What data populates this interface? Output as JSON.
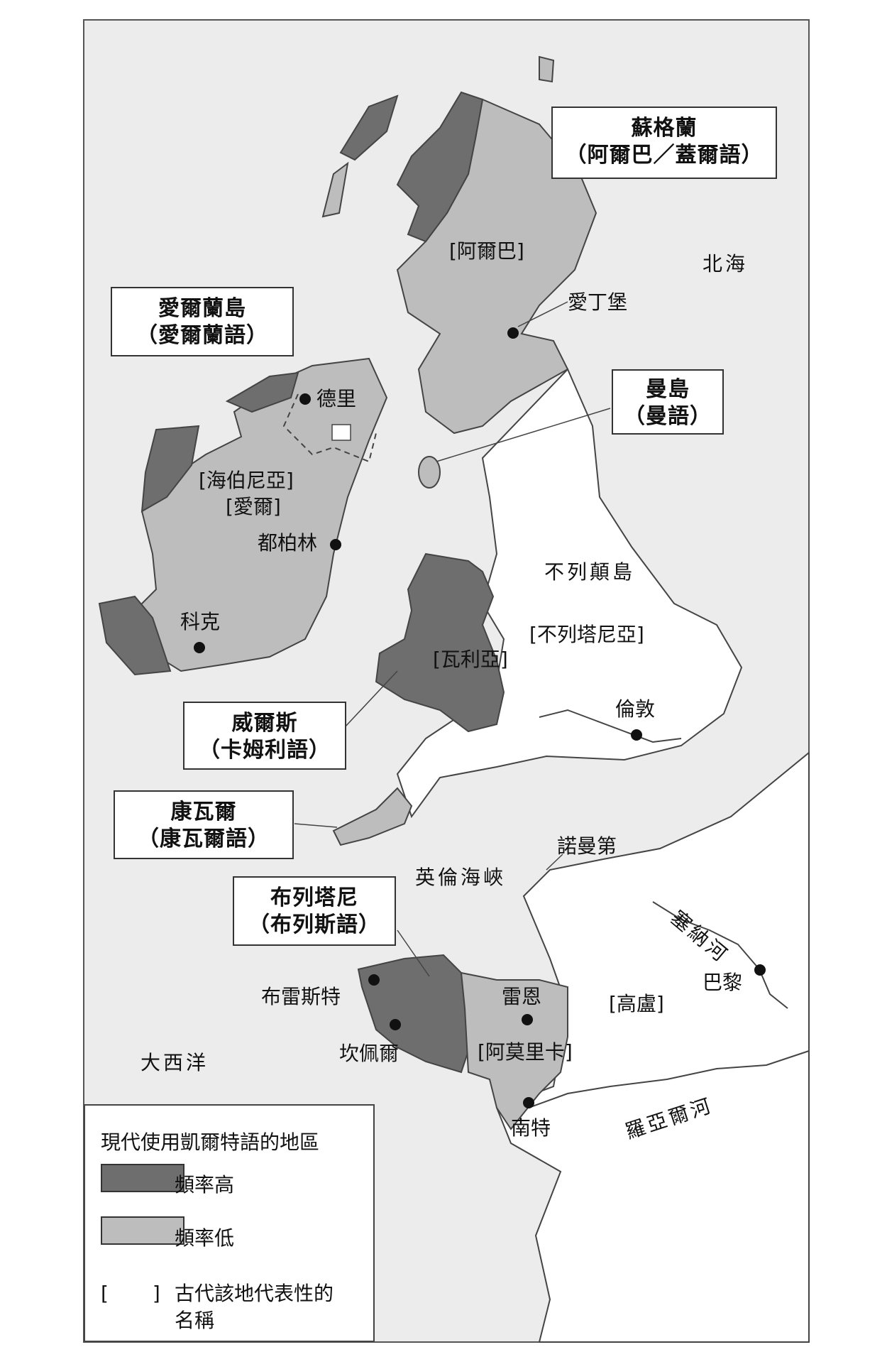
{
  "colors": {
    "high": "#6e6e6e",
    "low": "#bdbdbd",
    "sea": "#ececec",
    "land": "#ffffff"
  },
  "boxes": {
    "scotland": [
      "蘇格蘭",
      "（阿爾巴／蓋爾語）"
    ],
    "ireland": [
      "愛爾蘭島",
      "（愛爾蘭語）"
    ],
    "man": [
      "曼島",
      "（曼語）"
    ],
    "wales": [
      "威爾斯",
      "（卡姆利語）"
    ],
    "cornwall": [
      "康瓦爾",
      "（康瓦爾語）"
    ],
    "brittany": [
      "布列塔尼",
      "（布列斯語）"
    ]
  },
  "places": {
    "alba": "[阿爾巴]",
    "north_sea": "北海",
    "edinburgh": "愛丁堡",
    "derry": "德里",
    "hibernia": "[海伯尼亞]",
    "eire": "[愛爾]",
    "dublin": "都柏林",
    "britain_island": "不列顛島",
    "britannia": "[不列塔尼亞]",
    "cork": "科克",
    "walia": "[瓦利亞]",
    "london": "倫敦",
    "normandy": "諾曼第",
    "english_channel": "英倫海峽",
    "seine": "塞納河",
    "paris": "巴黎",
    "brest": "布雷斯特",
    "rennes": "雷恩",
    "gallia": "[高盧]",
    "quimper": "坎佩爾",
    "armorica": "[阿莫里卡]",
    "atlantic": "大西洋",
    "nantes": "南特",
    "loire": "羅亞爾河"
  },
  "legend": {
    "title": "現代使用凱爾特語的地區",
    "high": "頻率高",
    "low": "頻率低",
    "bracket": "[　　]",
    "ancient_line1": "古代該地代表性的",
    "ancient_line2": "名稱"
  }
}
